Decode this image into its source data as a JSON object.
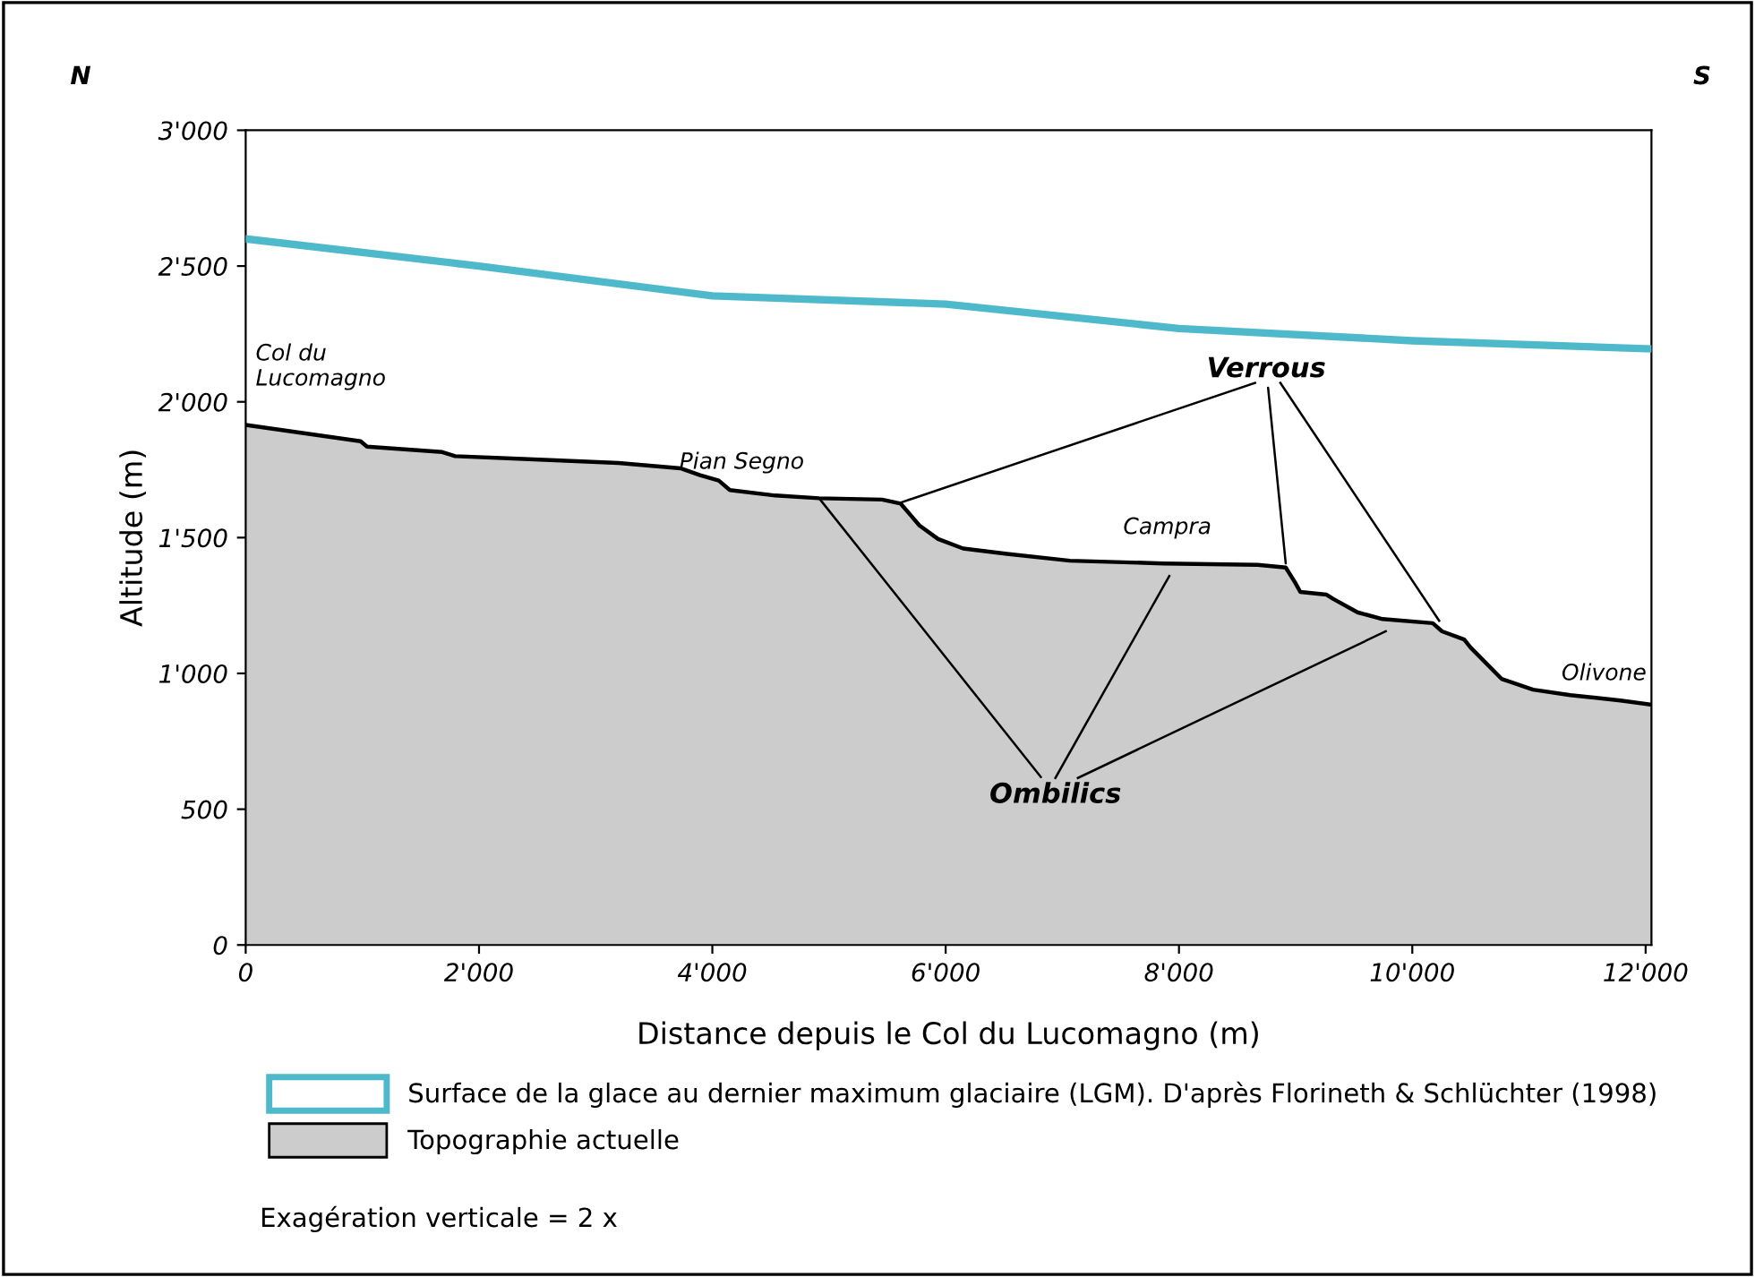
{
  "chart_data": {
    "type": "line",
    "xlabel": "Distance depuis le Col du Lucomagno (m)",
    "ylabel": "Altitude (m)",
    "xlim": [
      0,
      12050
    ],
    "ylim": [
      0,
      3000
    ],
    "xticks": [
      0,
      {
        "value": 2000,
        "label": "2'000"
      },
      {
        "value": 4000,
        "label": "4'000"
      },
      {
        "value": 6000,
        "label": "6'000"
      },
      {
        "value": 8000,
        "label": "8'000"
      },
      {
        "value": 10000,
        "label": "10'000"
      },
      {
        "value": 12000,
        "label": "12'000"
      }
    ],
    "yticks": [
      0,
      500,
      {
        "value": 1000,
        "label": "1'000"
      },
      {
        "value": 1500,
        "label": "1'500"
      },
      {
        "value": 2000,
        "label": "2'000"
      },
      {
        "value": 2500,
        "label": "2'500"
      },
      {
        "value": 3000,
        "label": "3'000"
      }
    ],
    "grid": false,
    "legend": "bottom",
    "series": [
      {
        "name": "Surface de la glace au dernier maximum glaciaire (LGM). D'après Florineth & Schlüchter (1998)",
        "color": "#4fb9cc",
        "x": [
          0,
          2000,
          4000,
          6000,
          8000,
          10000,
          12050
        ],
        "values": [
          2600,
          2500,
          2390,
          2360,
          2270,
          2225,
          2195
        ]
      },
      {
        "name": "Topographie actuelle",
        "type": "area",
        "color": "#cccccc",
        "x": [
          0,
          985,
          1040,
          1685,
          1795,
          2655,
          3195,
          3730,
          3895,
          4055,
          4150,
          4540,
          4915,
          5455,
          5615,
          5775,
          5935,
          6150,
          6525,
          7065,
          7870,
          8675,
          8915,
          8995,
          9040,
          9265,
          9320,
          9530,
          9745,
          10175,
          10255,
          10445,
          10500,
          10765,
          11035,
          11355,
          11785,
          12050
        ],
        "values": [
          1915,
          1855,
          1835,
          1815,
          1800,
          1785,
          1775,
          1755,
          1730,
          1710,
          1675,
          1655,
          1645,
          1640,
          1625,
          1545,
          1495,
          1460,
          1440,
          1415,
          1405,
          1400,
          1390,
          1335,
          1300,
          1290,
          1275,
          1225,
          1200,
          1185,
          1155,
          1125,
          1095,
          980,
          940,
          920,
          900,
          885
        ]
      }
    ],
    "annotations": [
      {
        "text": "Col du\nLucomagno",
        "x": 0,
        "y": 1915
      },
      {
        "text": "Pian Segno",
        "x": 5000,
        "y": 1645
      },
      {
        "text": "Campra",
        "x": 7900,
        "y": 1405
      },
      {
        "text": "Olivone",
        "x": 12050,
        "y": 885
      },
      {
        "text": "Verrous",
        "x": 8915,
        "y": 1405
      },
      {
        "text": "Ombilics",
        "x": 4915,
        "y": 1645
      },
      "N",
      "S",
      "Exagération verticale = 2 x"
    ]
  }
}
